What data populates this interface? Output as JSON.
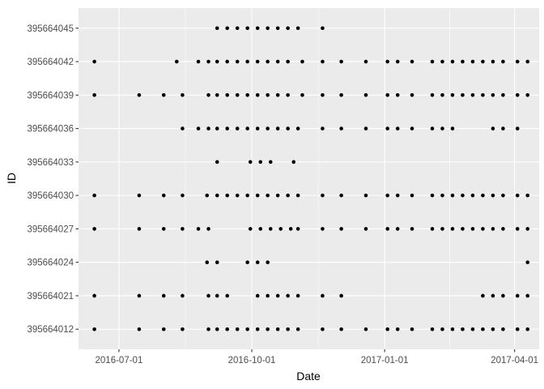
{
  "chart_data": {
    "type": "scatter",
    "title": "",
    "xlabel": "Date",
    "ylabel": "ID",
    "x_ticks": [
      "2016-07-01",
      "2016-10-01",
      "2017-01-01",
      "2017-04-01"
    ],
    "y_categories": [
      "395664012",
      "395664021",
      "395664024",
      "395664027",
      "395664030",
      "395664033",
      "395664036",
      "395664039",
      "395664042",
      "395664045"
    ],
    "xlim": [
      "2016-06-03",
      "2017-04-18"
    ],
    "grid": true,
    "legend": "none",
    "colors": {
      "panel_background": "#ebebeb",
      "grid_major": "#ffffff",
      "point": "#000000"
    },
    "series": [
      {
        "id": "395664045",
        "dates": [
          "2016-09-07",
          "2016-09-14",
          "2016-09-21",
          "2016-09-28",
          "2016-10-05",
          "2016-10-12",
          "2016-10-19",
          "2016-10-26",
          "2016-11-02",
          "2016-11-19"
        ]
      },
      {
        "id": "395664042",
        "dates": [
          "2016-06-14",
          "2016-08-10",
          "2016-08-25",
          "2016-09-01",
          "2016-09-07",
          "2016-09-14",
          "2016-09-21",
          "2016-09-28",
          "2016-10-05",
          "2016-10-12",
          "2016-10-19",
          "2016-10-26",
          "2016-11-05",
          "2016-11-19",
          "2016-12-02",
          "2016-12-19",
          "2017-01-03",
          "2017-01-10",
          "2017-01-20",
          "2017-02-03",
          "2017-02-10",
          "2017-02-17",
          "2017-02-24",
          "2017-03-03",
          "2017-03-10",
          "2017-03-17",
          "2017-03-24",
          "2017-04-03",
          "2017-04-10"
        ]
      },
      {
        "id": "395664039",
        "dates": [
          "2016-06-14",
          "2016-07-15",
          "2016-08-01",
          "2016-08-14",
          "2016-09-01",
          "2016-09-07",
          "2016-09-14",
          "2016-09-21",
          "2016-09-28",
          "2016-10-05",
          "2016-10-12",
          "2016-10-19",
          "2016-10-26",
          "2016-11-05",
          "2016-11-19",
          "2016-12-02",
          "2016-12-19",
          "2017-01-03",
          "2017-01-10",
          "2017-01-20",
          "2017-02-03",
          "2017-02-10",
          "2017-02-17",
          "2017-02-24",
          "2017-03-03",
          "2017-03-10",
          "2017-03-17",
          "2017-03-24",
          "2017-04-03",
          "2017-04-10"
        ]
      },
      {
        "id": "395664036",
        "dates": [
          "2016-08-14",
          "2016-08-25",
          "2016-09-01",
          "2016-09-07",
          "2016-09-14",
          "2016-09-21",
          "2016-09-28",
          "2016-10-05",
          "2016-10-12",
          "2016-10-19",
          "2016-10-26",
          "2016-11-02",
          "2016-11-19",
          "2016-12-02",
          "2016-12-19",
          "2017-01-03",
          "2017-01-10",
          "2017-01-20",
          "2017-02-03",
          "2017-02-10",
          "2017-02-17",
          "2017-03-17",
          "2017-03-24",
          "2017-04-03"
        ]
      },
      {
        "id": "395664033",
        "dates": [
          "2016-09-07",
          "2016-09-30",
          "2016-10-07",
          "2016-10-14",
          "2016-10-30"
        ]
      },
      {
        "id": "395664030",
        "dates": [
          "2016-06-14",
          "2016-07-15",
          "2016-08-01",
          "2016-08-14",
          "2016-08-31",
          "2016-09-07",
          "2016-09-14",
          "2016-09-21",
          "2016-09-28",
          "2016-10-05",
          "2016-10-12",
          "2016-10-19",
          "2016-10-26",
          "2016-11-02",
          "2016-11-19",
          "2016-12-02",
          "2016-12-19",
          "2017-01-03",
          "2017-01-10",
          "2017-01-20",
          "2017-02-03",
          "2017-02-10",
          "2017-02-17",
          "2017-02-24",
          "2017-03-03",
          "2017-03-10",
          "2017-03-17",
          "2017-03-24",
          "2017-04-03",
          "2017-04-10"
        ]
      },
      {
        "id": "395664027",
        "dates": [
          "2016-06-14",
          "2016-07-15",
          "2016-08-01",
          "2016-08-14",
          "2016-08-25",
          "2016-09-01",
          "2016-09-30",
          "2016-10-07",
          "2016-10-14",
          "2016-10-21",
          "2016-10-28",
          "2016-11-02",
          "2016-11-19",
          "2016-12-02",
          "2016-12-19",
          "2017-01-03",
          "2017-01-10",
          "2017-01-20",
          "2017-02-03",
          "2017-02-10",
          "2017-02-17",
          "2017-02-24",
          "2017-03-03",
          "2017-03-10",
          "2017-03-17",
          "2017-03-24",
          "2017-04-03",
          "2017-04-10"
        ]
      },
      {
        "id": "395664024",
        "dates": [
          "2016-08-31",
          "2016-09-07",
          "2016-09-28",
          "2016-10-05",
          "2016-10-12",
          "2017-04-10"
        ]
      },
      {
        "id": "395664021",
        "dates": [
          "2016-06-14",
          "2016-07-15",
          "2016-08-01",
          "2016-08-14",
          "2016-09-01",
          "2016-09-07",
          "2016-09-14",
          "2016-10-05",
          "2016-10-12",
          "2016-10-19",
          "2016-10-26",
          "2016-11-02",
          "2016-11-19",
          "2016-12-02",
          "2017-03-10",
          "2017-03-17",
          "2017-03-24",
          "2017-04-03",
          "2017-04-10"
        ]
      },
      {
        "id": "395664012",
        "dates": [
          "2016-06-14",
          "2016-07-15",
          "2016-08-01",
          "2016-08-14",
          "2016-09-01",
          "2016-09-07",
          "2016-09-14",
          "2016-09-21",
          "2016-09-28",
          "2016-10-05",
          "2016-10-12",
          "2016-10-19",
          "2016-10-26",
          "2016-11-02",
          "2016-11-19",
          "2016-12-02",
          "2016-12-19",
          "2017-01-03",
          "2017-01-10",
          "2017-01-20",
          "2017-02-03",
          "2017-02-10",
          "2017-02-17",
          "2017-02-24",
          "2017-03-03",
          "2017-03-10",
          "2017-03-17",
          "2017-03-24",
          "2017-04-03",
          "2017-04-10"
        ]
      }
    ]
  }
}
